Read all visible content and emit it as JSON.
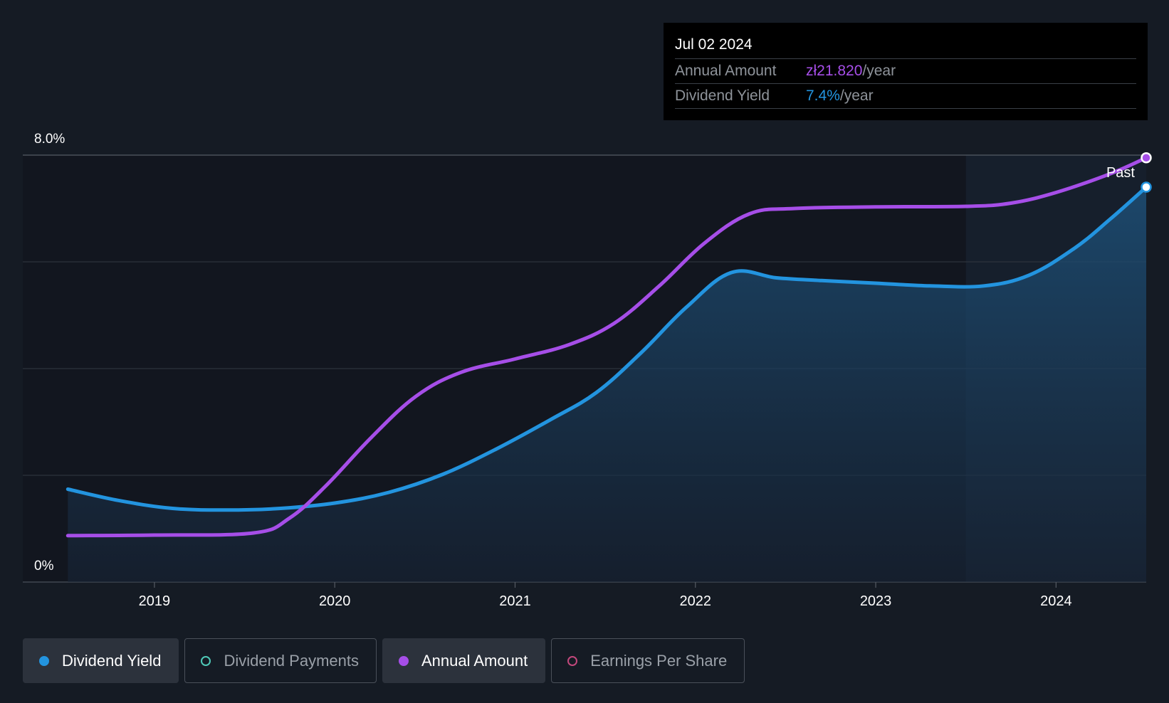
{
  "chart_data": {
    "type": "line",
    "y_axis": {
      "tick_labels": [
        "8.0%",
        "0%"
      ],
      "ylim": [
        0,
        8.0
      ]
    },
    "x_axis": {
      "tick_labels": [
        "2019",
        "2020",
        "2021",
        "2022",
        "2023",
        "2024"
      ],
      "xlim": [
        2018.27,
        2024.5
      ]
    },
    "past_label": "Past",
    "past_start": 2023.5,
    "series": [
      {
        "name": "Dividend Yield",
        "color": "#2394df",
        "fill": true,
        "points": [
          [
            2018.52,
            1.74
          ],
          [
            2018.8,
            1.53
          ],
          [
            2019.1,
            1.38
          ],
          [
            2019.4,
            1.35
          ],
          [
            2019.7,
            1.38
          ],
          [
            2020.0,
            1.48
          ],
          [
            2020.3,
            1.68
          ],
          [
            2020.6,
            2.02
          ],
          [
            2020.9,
            2.5
          ],
          [
            2021.2,
            3.05
          ],
          [
            2021.45,
            3.55
          ],
          [
            2021.7,
            4.3
          ],
          [
            2021.95,
            5.15
          ],
          [
            2022.2,
            5.8
          ],
          [
            2022.45,
            5.7
          ],
          [
            2022.7,
            5.65
          ],
          [
            2023.0,
            5.6
          ],
          [
            2023.3,
            5.55
          ],
          [
            2023.6,
            5.55
          ],
          [
            2023.85,
            5.75
          ],
          [
            2024.1,
            6.25
          ],
          [
            2024.3,
            6.8
          ],
          [
            2024.5,
            7.4
          ]
        ]
      },
      {
        "name": "Annual Amount",
        "color": "#a64ee8",
        "fill": false,
        "points": [
          [
            2018.52,
            0.87
          ],
          [
            2019.0,
            0.88
          ],
          [
            2019.55,
            0.92
          ],
          [
            2019.75,
            1.2
          ],
          [
            2019.95,
            1.8
          ],
          [
            2020.2,
            2.7
          ],
          [
            2020.45,
            3.48
          ],
          [
            2020.7,
            3.93
          ],
          [
            2021.0,
            4.18
          ],
          [
            2021.3,
            4.45
          ],
          [
            2021.55,
            4.85
          ],
          [
            2021.8,
            5.55
          ],
          [
            2022.05,
            6.35
          ],
          [
            2022.3,
            6.9
          ],
          [
            2022.55,
            7.0
          ],
          [
            2023.0,
            7.03
          ],
          [
            2023.5,
            7.04
          ],
          [
            2023.75,
            7.1
          ],
          [
            2024.0,
            7.3
          ],
          [
            2024.3,
            7.65
          ],
          [
            2024.5,
            7.95
          ]
        ]
      }
    ],
    "legend": [
      {
        "label": "Dividend Yield",
        "color": "#2394df",
        "active": true
      },
      {
        "label": "Dividend Payments",
        "color": "#4fc9b8",
        "active": false
      },
      {
        "label": "Annual Amount",
        "color": "#a64ee8",
        "active": true
      },
      {
        "label": "Earnings Per Share",
        "color": "#c2487c",
        "active": false
      }
    ]
  },
  "tooltip": {
    "date": "Jul 02 2024",
    "rows": [
      {
        "label": "Annual Amount",
        "value": "zł21.820",
        "unit": "/year",
        "color": "#a64ee8"
      },
      {
        "label": "Dividend Yield",
        "value": "7.4%",
        "unit": "/year",
        "color": "#2394df"
      }
    ]
  }
}
